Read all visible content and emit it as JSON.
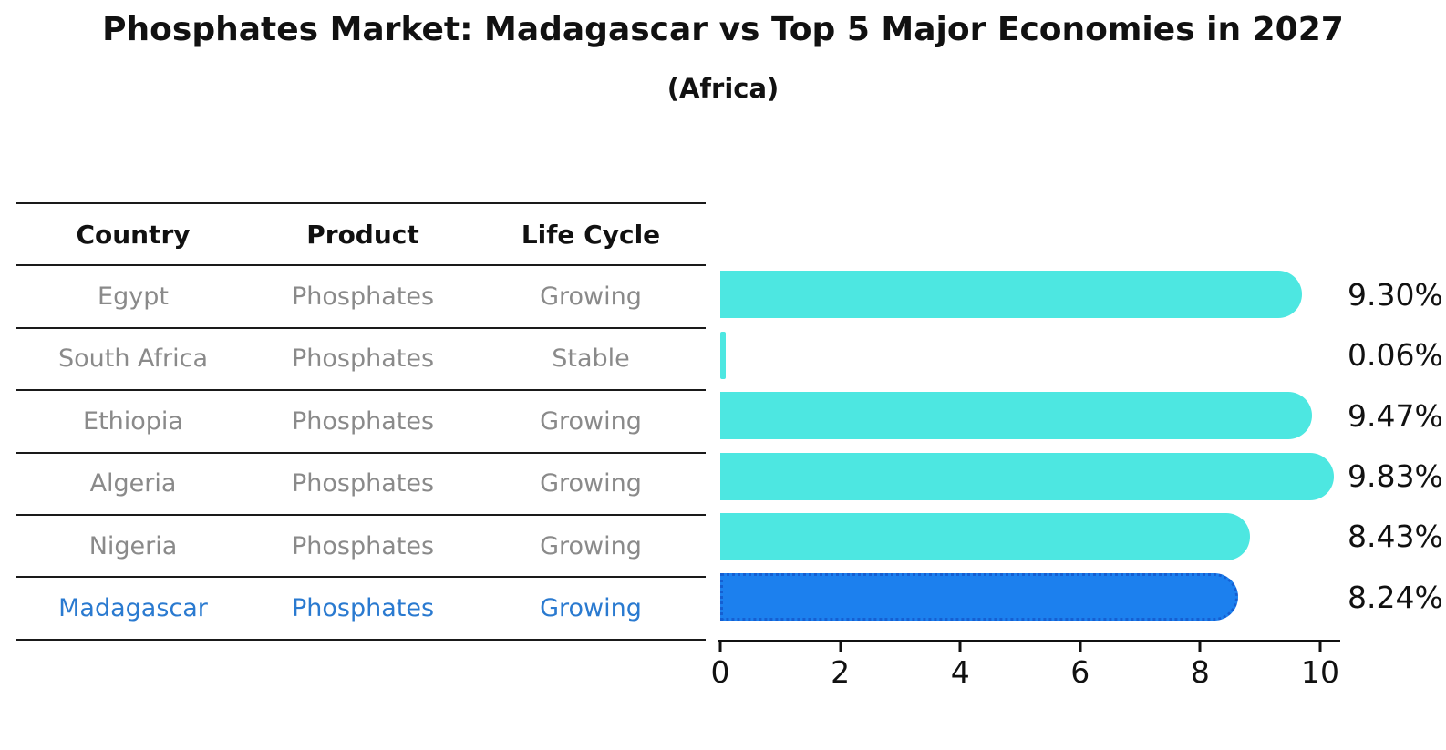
{
  "title": "Phosphates Market: Madagascar vs Top 5 Major Economies in 2027",
  "subtitle": "(Africa)",
  "table": {
    "headers": [
      "Country",
      "Product",
      "Life Cycle"
    ],
    "rows": [
      {
        "country": "Egypt",
        "product": "Phosphates",
        "life_cycle": "Growing",
        "highlight": false
      },
      {
        "country": "South Africa",
        "product": "Phosphates",
        "life_cycle": "Stable",
        "highlight": false
      },
      {
        "country": "Ethiopia",
        "product": "Phosphates",
        "life_cycle": "Growing",
        "highlight": false
      },
      {
        "country": "Algeria",
        "product": "Phosphates",
        "life_cycle": "Growing",
        "highlight": false
      },
      {
        "country": "Nigeria",
        "product": "Phosphates",
        "life_cycle": "Growing",
        "highlight": false
      },
      {
        "country": "Madagascar",
        "product": "Phosphates",
        "life_cycle": "Growing",
        "highlight": true
      }
    ]
  },
  "chart_data": {
    "type": "bar",
    "orientation": "horizontal",
    "title": "Phosphates Market: Madagascar vs Top 5 Major Economies in 2027",
    "subtitle": "(Africa)",
    "categories": [
      "Egypt",
      "South Africa",
      "Ethiopia",
      "Algeria",
      "Nigeria",
      "Madagascar"
    ],
    "values": [
      9.3,
      0.06,
      9.47,
      9.83,
      8.43,
      8.24
    ],
    "value_labels": [
      "9.30%",
      "0.06%",
      "9.47%",
      "9.83%",
      "8.43%",
      "8.24%"
    ],
    "x_ticks": [
      0,
      2,
      4,
      6,
      8,
      10
    ],
    "xlim": [
      0,
      10
    ],
    "grid": false,
    "legend": "none",
    "bar_color": "#4de7e1",
    "highlight_color": "#1c80ee",
    "highlight_border_color": "#155fd2",
    "highlight_index": 5
  },
  "colors": {
    "title_text": "#111111",
    "table_text": "#8a8a8a",
    "highlight_text": "#2a7ad0",
    "axis": "#111111"
  }
}
